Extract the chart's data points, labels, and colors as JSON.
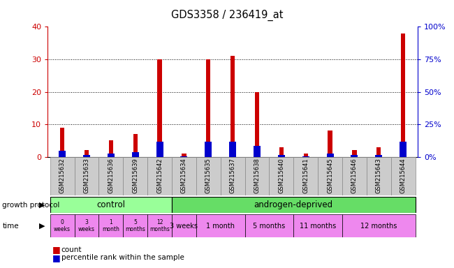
{
  "title": "GDS3358 / 236419_at",
  "samples": [
    "GSM215632",
    "GSM215633",
    "GSM215636",
    "GSM215639",
    "GSM215642",
    "GSM215634",
    "GSM215635",
    "GSM215637",
    "GSM215638",
    "GSM215640",
    "GSM215641",
    "GSM215645",
    "GSM215646",
    "GSM215643",
    "GSM215644"
  ],
  "count_values": [
    9,
    2,
    5,
    7,
    30,
    1,
    30,
    31,
    20,
    3,
    1,
    8,
    2,
    3,
    38
  ],
  "percentile_values": [
    4.5,
    1.5,
    2.5,
    3.5,
    11.5,
    0.5,
    11.5,
    11.5,
    8.5,
    1.5,
    0.5,
    2.5,
    1.5,
    1.5,
    11.5
  ],
  "ylim_left": [
    0,
    40
  ],
  "ylim_right": [
    0,
    100
  ],
  "yticks_left": [
    0,
    10,
    20,
    30,
    40
  ],
  "yticks_right": [
    0,
    25,
    50,
    75,
    100
  ],
  "left_axis_color": "#cc0000",
  "right_axis_color": "#0000cc",
  "bar_color_count": "#cc0000",
  "bar_color_pct": "#0000cc",
  "background_color": "#ffffff",
  "plot_bg_color": "#ffffff",
  "control_color": "#99ff99",
  "androgen_color": "#66dd66",
  "time_control_color": "#ee88ee",
  "time_androgen_color": "#ee88ee",
  "tick_label_bg": "#cccccc",
  "control_label": "control",
  "androgen_label": "androgen-deprived",
  "growth_protocol_label": "growth protocol",
  "time_label": "time",
  "legend_count": "count",
  "legend_pct": "percentile rank within the sample",
  "control_time_labels": [
    "0\nweeks",
    "3\nweeks",
    "1\nmonth",
    "5\nmonths",
    "12\nmonths"
  ],
  "androgen_time_labels": [
    "3 weeks",
    "1 month",
    "5 months",
    "11 months",
    "12 months"
  ],
  "androgen_group_sizes": [
    1,
    2,
    2,
    2,
    3
  ],
  "n_control": 5,
  "n_androgen": 10
}
